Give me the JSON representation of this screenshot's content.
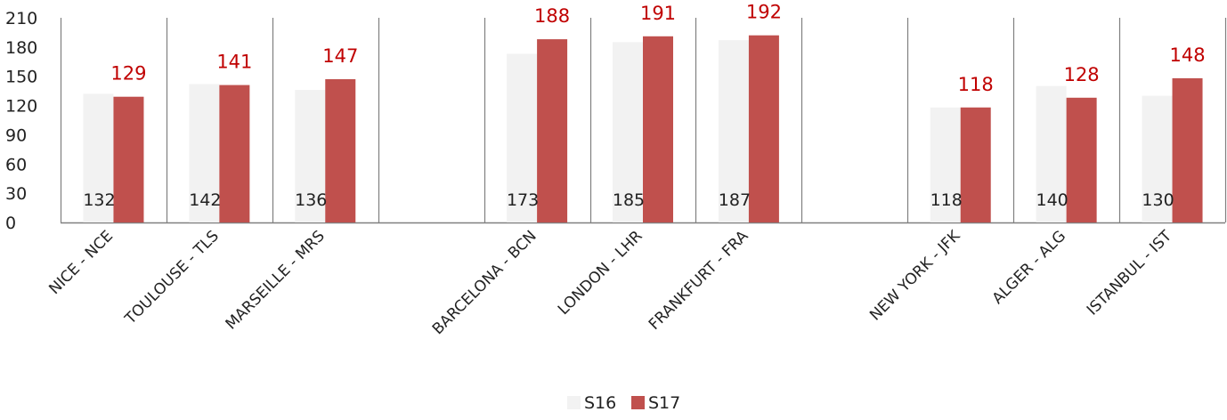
{
  "chart_data": {
    "type": "bar",
    "title": "",
    "xlabel": "",
    "ylabel": "",
    "ylim": [
      0,
      210
    ],
    "yticks": [
      0,
      30,
      60,
      90,
      120,
      150,
      180,
      210
    ],
    "grid": false,
    "legend_position": "bottom-center",
    "categories": [
      "NICE - NCE",
      "TOULOUSE - TLS",
      "MARSEILLE - MRS",
      "",
      "BARCELONA - BCN",
      "LONDON - LHR",
      "FRANKFURT - FRA",
      "",
      "NEW YORK - JFK",
      "ALGER - ALG",
      "ISTANBUL - IST"
    ],
    "series": [
      {
        "name": "S16",
        "color": "#f2f2f2",
        "values": [
          132,
          142,
          136,
          null,
          173,
          185,
          187,
          null,
          118,
          140,
          130
        ]
      },
      {
        "name": "S17",
        "color": "#c0504d",
        "values": [
          129,
          141,
          147,
          null,
          188,
          191,
          192,
          null,
          118,
          128,
          148
        ]
      }
    ]
  },
  "colors": {
    "s17_label": "#c00000",
    "axis": "#808080"
  }
}
